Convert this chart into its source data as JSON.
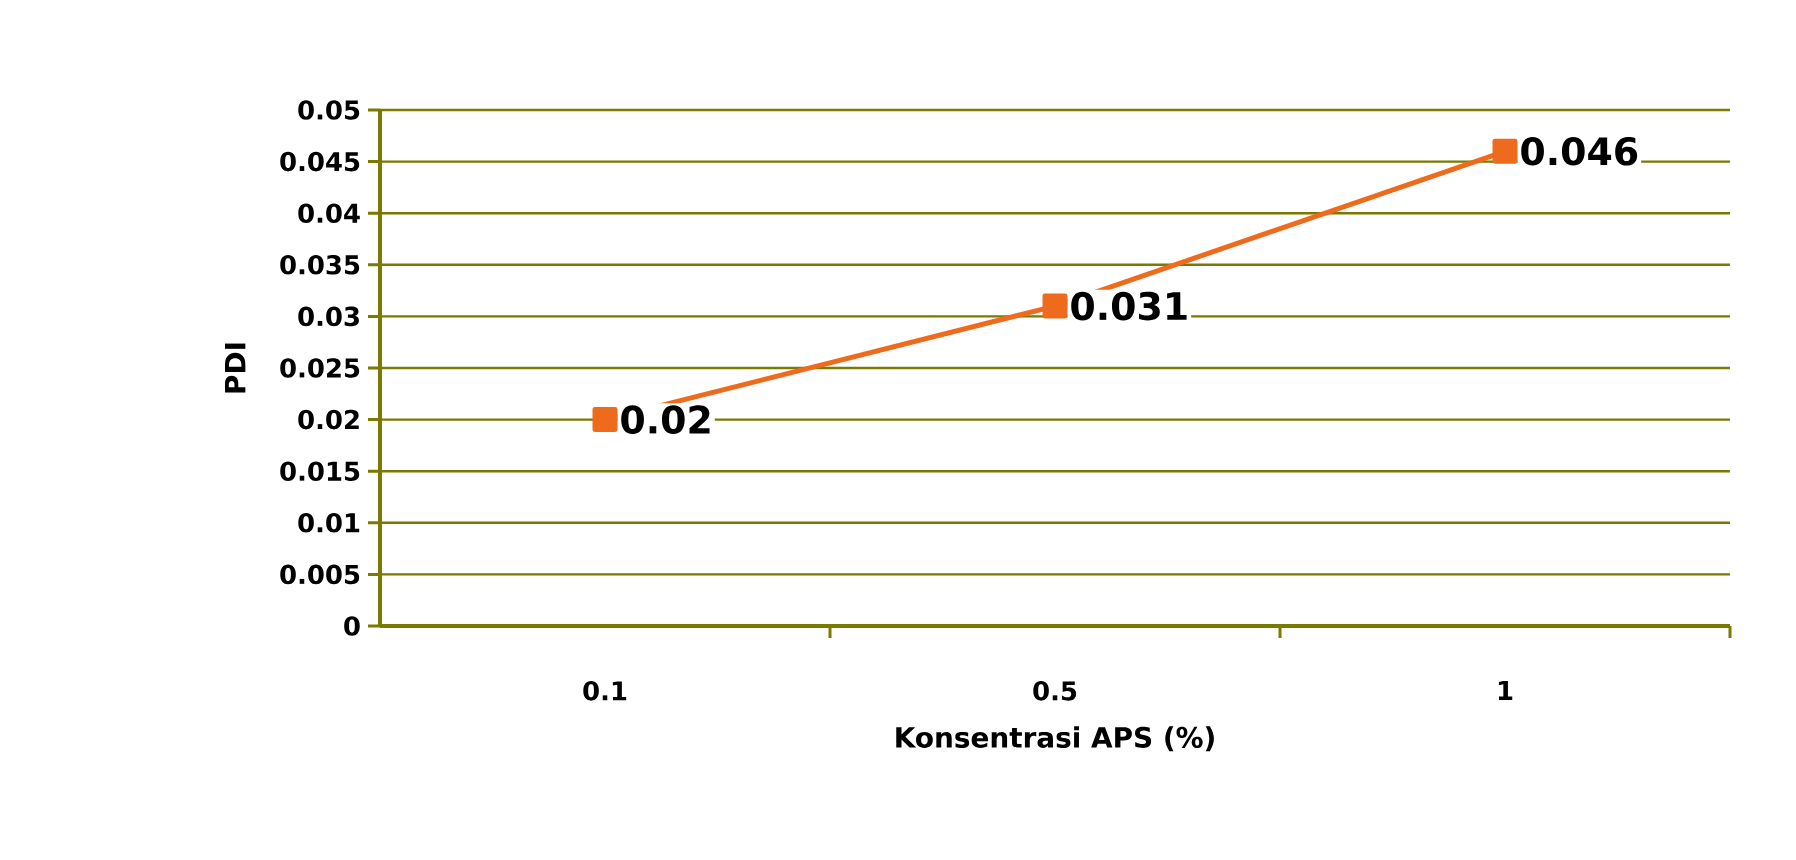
{
  "chart_data": {
    "type": "line",
    "xlabel": "Konsentrasi APS (%)",
    "ylabel": "PDI",
    "categories": [
      "0.1",
      "0.5",
      "1"
    ],
    "series": [
      {
        "color": "#ee6a1c",
        "values": [
          0.02,
          0.031,
          0.046
        ]
      }
    ],
    "ylim": [
      0,
      0.05
    ],
    "yticks": [
      0,
      0.005,
      0.01,
      0.015,
      0.02,
      0.025,
      0.03,
      0.035,
      0.04,
      0.045,
      0.05
    ],
    "grid": "y",
    "marker": "square",
    "line_style": "solid",
    "data_labels": true
  }
}
